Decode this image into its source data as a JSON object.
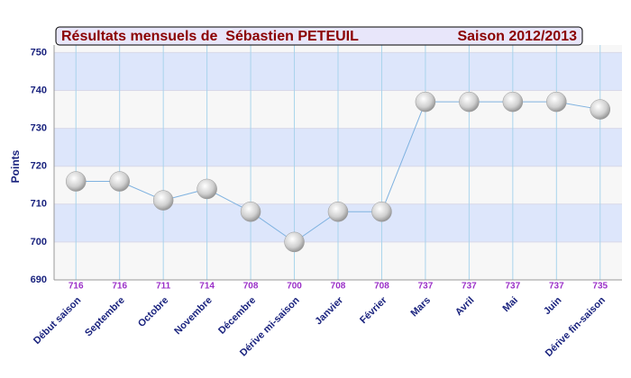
{
  "chart_data": {
    "type": "line",
    "title": "Résultats mensuels de  Sébastien PETEUIL",
    "subtitle": "Saison 2012/2013",
    "y_label": "Points",
    "categories": [
      "Début saison",
      "Septembre",
      "Octobre",
      "Novembre",
      "Décembre",
      "Dérive mi-saison",
      "Janvier",
      "Février",
      "Mars",
      "Avril",
      "Mai",
      "Juin",
      "Dérive fin-saison"
    ],
    "values": [
      716,
      716,
      711,
      714,
      708,
      700,
      708,
      708,
      737,
      737,
      737,
      737,
      735
    ],
    "color": "#7fb2e0",
    "ylim": [
      690,
      752
    ],
    "yticks": [
      690,
      700,
      710,
      720,
      730,
      740,
      750
    ],
    "grid": true
  }
}
